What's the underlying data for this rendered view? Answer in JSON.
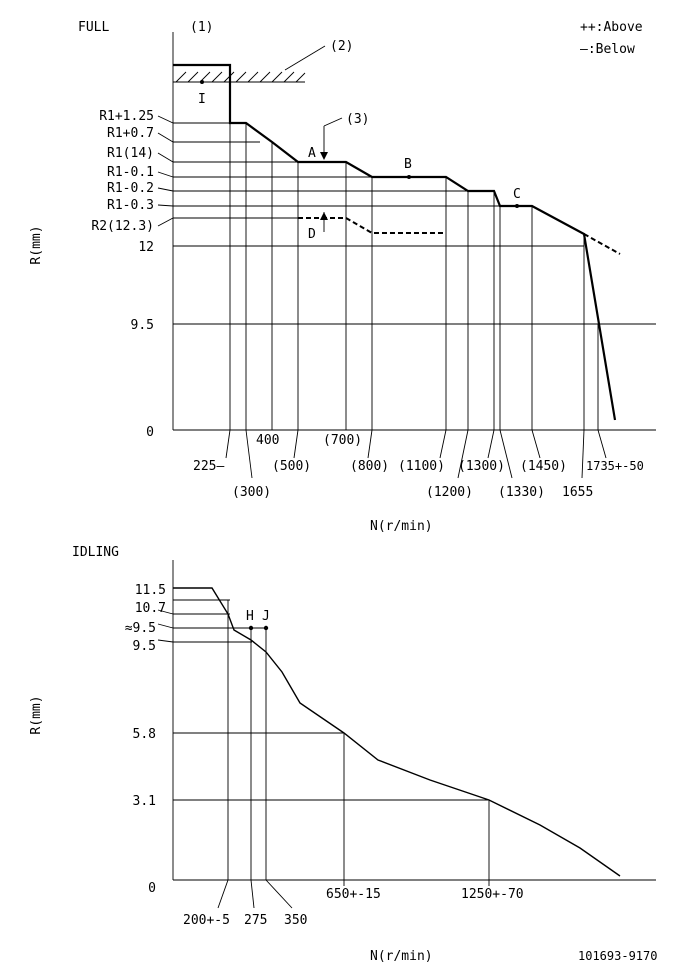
{
  "full": {
    "title": "FULL",
    "marker1": "(1)",
    "marker2": "(2)",
    "marker3": "(3)",
    "legend_above": "++:Above",
    "legend_below": "—:Below",
    "y_axis_label": "R(mm)",
    "x_axis_label": "N(r/min)",
    "y_labels": [
      "R1+1.25",
      "R1+0.7",
      "R1(14)",
      "R1-0.1",
      "R1-0.2",
      "R1-0.3",
      "R2(12.3)",
      "12",
      "9.5",
      "0"
    ],
    "x_labels": [
      "225—",
      "(300)",
      "400",
      "(500)",
      "(700)",
      "(800)",
      "(1100)",
      "(1200)",
      "(1300)",
      "(1330)",
      "(1450)",
      "1655",
      "1735+-50"
    ],
    "points": {
      "I": "I",
      "A": "A",
      "B": "B",
      "C": "C",
      "D": "D"
    }
  },
  "idling": {
    "title": "IDLING",
    "y_axis_label": "R(mm)",
    "x_axis_label": "N(r/min)",
    "y_labels": [
      "11.5",
      "10.7",
      "≈9.5",
      "9.5",
      "5.8",
      "3.1",
      "0"
    ],
    "x_labels": [
      "200+-5",
      "275",
      "350",
      "650+-15",
      "1250+-70"
    ],
    "points": {
      "H": "H",
      "J": "J"
    }
  },
  "part_number": "101693-9170"
}
